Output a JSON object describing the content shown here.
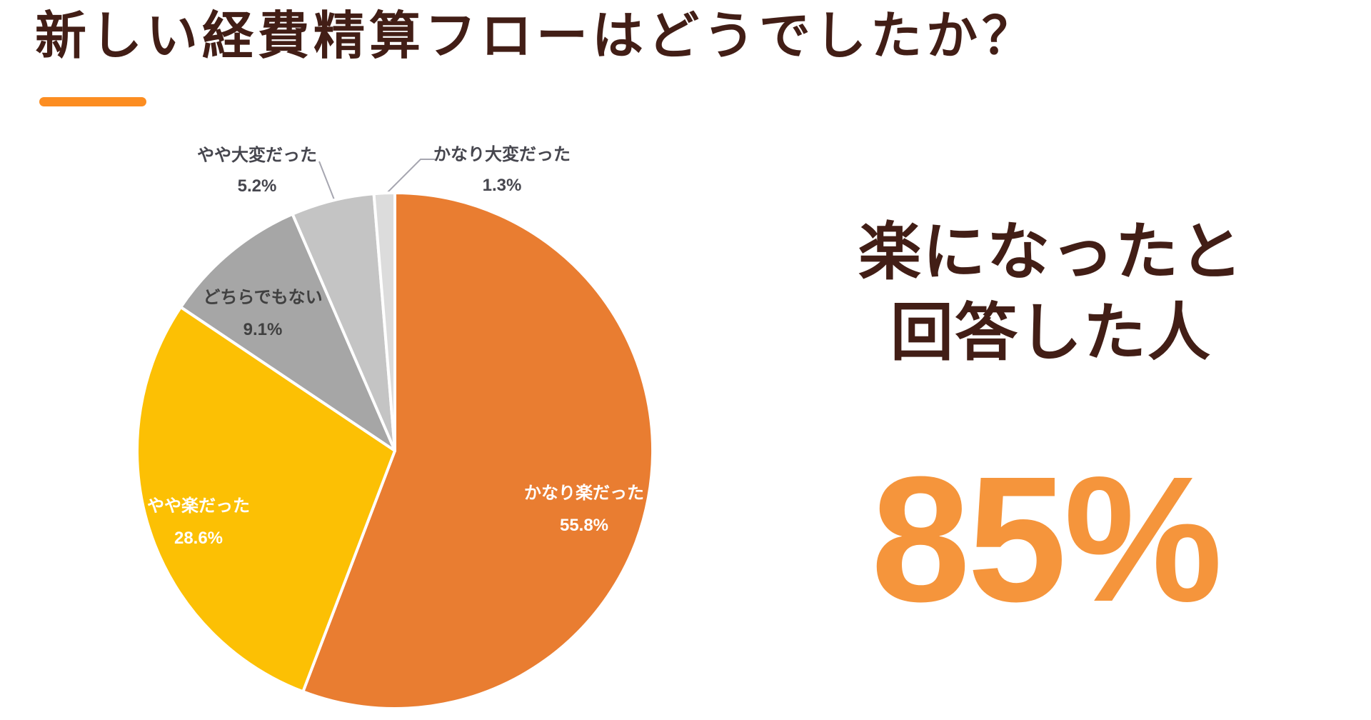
{
  "chart_data": {
    "type": "pie",
    "title": "新しい経費精算フローはどうでしたか？",
    "categories": [
      "かなり楽だった",
      "やや楽だった",
      "どちらでもない",
      "やや大変だった",
      "かなり大変だった"
    ],
    "values": [
      55.8,
      28.6,
      9.1,
      5.2,
      1.3
    ],
    "value_labels": [
      "55.8%",
      "28.6%",
      "9.1%",
      "5.2%",
      "1.3%"
    ],
    "colors": [
      "#e97d31",
      "#fcc004",
      "#a6a6a6",
      "#c4c4c4",
      "#dcdcdc"
    ],
    "start_angle_deg": 0,
    "direction": "clockwise",
    "legend": "none",
    "label_placement": "large slices labeled inside, small slices labeled outside with leader lines"
  },
  "callout": {
    "line1": "楽になったと",
    "line2": "回答した人",
    "value": "85%"
  },
  "colors": {
    "title_text": "#421e16",
    "accent_orange": "#fc8d21",
    "callout_value_orange": "#f5953c",
    "outside_label_text": "#46464e",
    "leader_line": "#a6a6b0",
    "background": "#ffffff"
  }
}
